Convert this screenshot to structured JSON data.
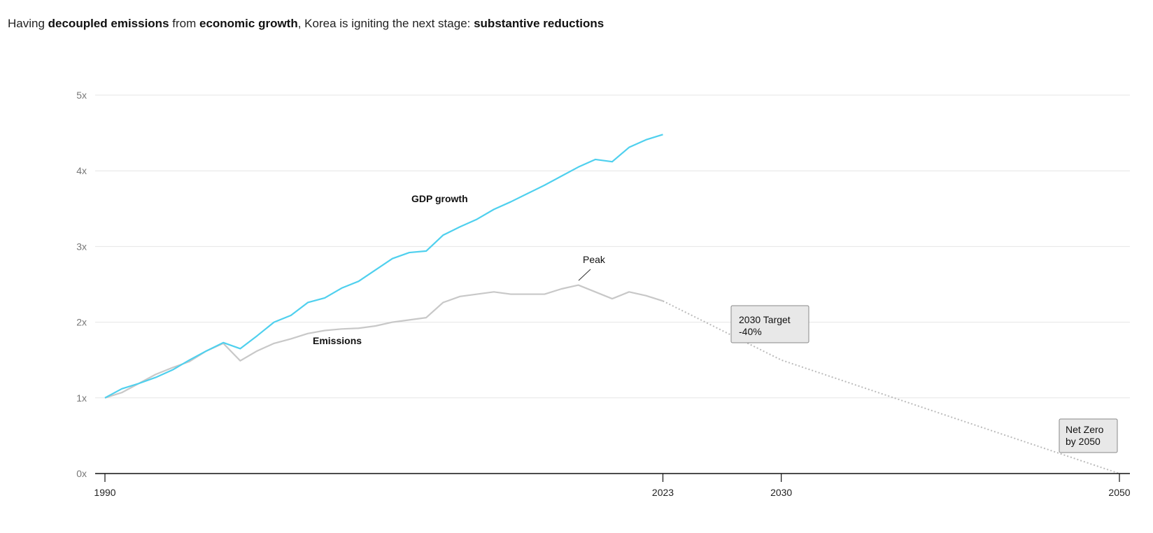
{
  "title": {
    "segments": [
      {
        "text": "Having ",
        "bold": false
      },
      {
        "text": "decoupled emissions",
        "bold": true
      },
      {
        "text": " from ",
        "bold": false
      },
      {
        "text": "economic growth",
        "bold": true
      },
      {
        "text": ", Korea is igniting the next stage: ",
        "bold": false
      },
      {
        "text": "substantive reductions",
        "bold": true
      }
    ]
  },
  "chart_data": {
    "type": "line",
    "ylim": [
      0,
      5
    ],
    "xlim": [
      1990,
      2050
    ],
    "y_ticks": [
      {
        "v": 0,
        "label": "0x"
      },
      {
        "v": 1,
        "label": "1x"
      },
      {
        "v": 2,
        "label": "2x"
      },
      {
        "v": 3,
        "label": "3x"
      },
      {
        "v": 4,
        "label": "4x"
      },
      {
        "v": 5,
        "label": "5x"
      }
    ],
    "x_ticks": [
      {
        "v": 1990,
        "label": "1990"
      },
      {
        "v": 2023,
        "label": "2023"
      },
      {
        "v": 2030,
        "label": "2030"
      },
      {
        "v": 2050,
        "label": "2050"
      }
    ],
    "grid": true,
    "x": [
      1990,
      1991,
      1992,
      1993,
      1994,
      1995,
      1996,
      1997,
      1998,
      1999,
      2000,
      2001,
      2002,
      2003,
      2004,
      2005,
      2006,
      2007,
      2008,
      2009,
      2010,
      2011,
      2012,
      2013,
      2014,
      2015,
      2016,
      2017,
      2018,
      2019,
      2020,
      2021,
      2022,
      2023
    ],
    "series": [
      {
        "name": "GDP growth",
        "color": "#4fd0ee",
        "values": [
          1.0,
          1.12,
          1.19,
          1.27,
          1.37,
          1.5,
          1.62,
          1.73,
          1.65,
          1.82,
          2.0,
          2.09,
          2.26,
          2.32,
          2.45,
          2.54,
          2.69,
          2.84,
          2.92,
          2.94,
          3.15,
          3.26,
          3.36,
          3.49,
          3.59,
          3.7,
          3.81,
          3.93,
          4.05,
          4.15,
          4.12,
          4.31,
          4.41,
          4.48
        ]
      },
      {
        "name": "Emissions",
        "color": "#c8c8c8",
        "values": [
          1.0,
          1.07,
          1.19,
          1.31,
          1.4,
          1.48,
          1.62,
          1.72,
          1.49,
          1.62,
          1.72,
          1.78,
          1.85,
          1.89,
          1.91,
          1.92,
          1.95,
          2.0,
          2.03,
          2.06,
          2.26,
          2.34,
          2.37,
          2.4,
          2.37,
          2.37,
          2.37,
          2.44,
          2.49,
          2.4,
          2.31,
          2.4,
          2.35,
          2.28
        ]
      }
    ],
    "projection": {
      "color": "#bbbbbb",
      "style": "dotted",
      "points": [
        [
          2023,
          2.28
        ],
        [
          2030,
          1.5
        ],
        [
          2050,
          0
        ]
      ]
    },
    "annotations": {
      "peak": {
        "text": "Peak",
        "year": 2018
      },
      "target_2030": {
        "line1": "2030 Target",
        "line2": "-40%"
      },
      "net_zero": {
        "line1": "Net Zero",
        "line2": "by 2050"
      }
    }
  }
}
